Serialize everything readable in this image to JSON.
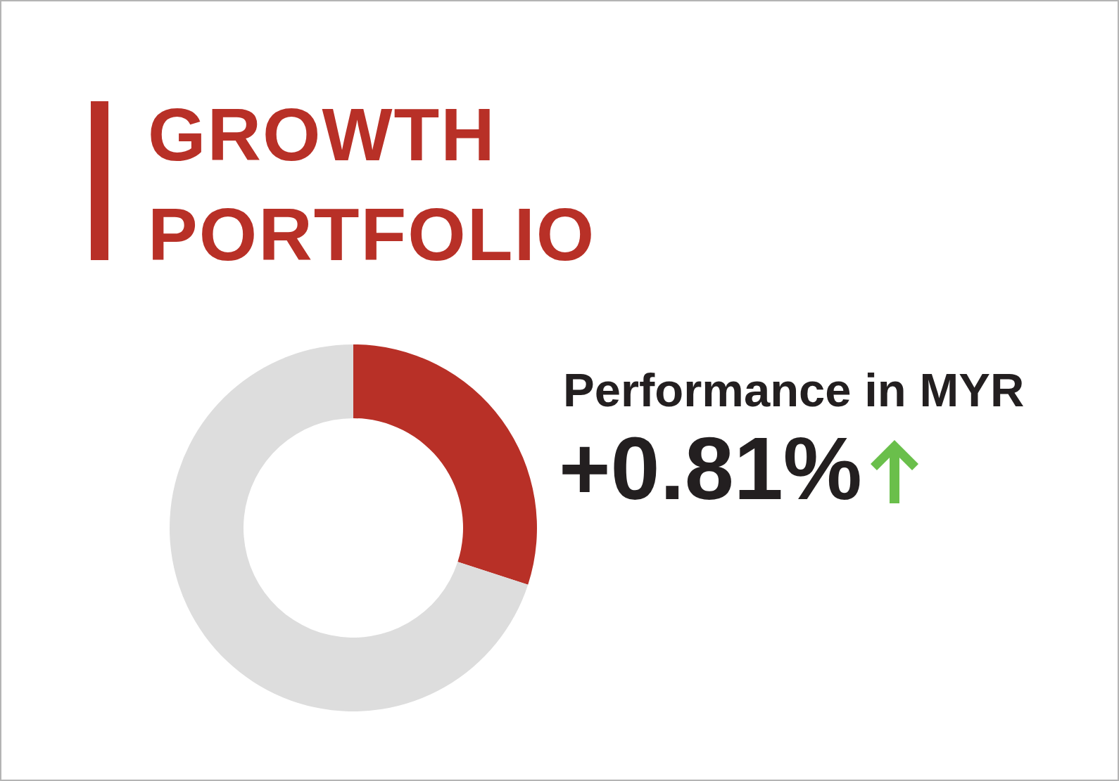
{
  "chart_data": {
    "type": "donut",
    "title": "GROWTH PORTFOLIO",
    "categories": [
      null,
      null
    ],
    "values": [
      30,
      70
    ],
    "colors": [
      "#b83027",
      "#dddddd"
    ],
    "annotations": [
      "Performance in MYR",
      "+0.81%"
    ]
  }
}
